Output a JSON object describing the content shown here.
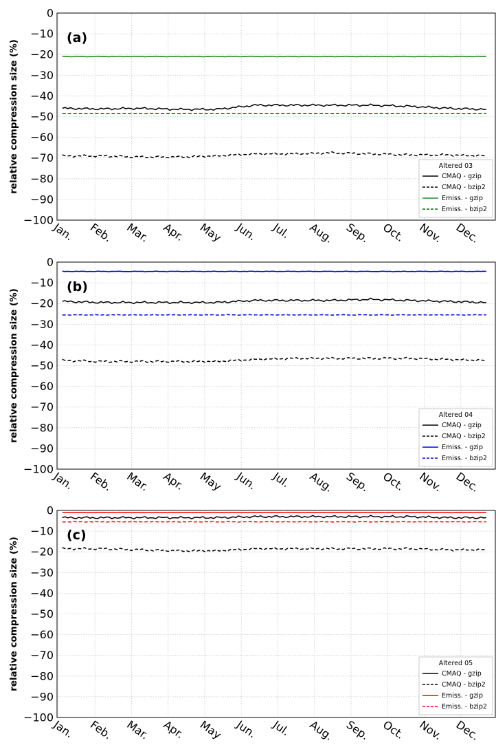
{
  "chart_data": [
    {
      "type": "line",
      "panel_label": "(a)",
      "ylabel": "relative compression size (%)",
      "xlabel": "",
      "ylim": [
        -100,
        0
      ],
      "yticks": [
        "0",
        "−10",
        "−20",
        "−30",
        "−40",
        "−50",
        "−60",
        "−70",
        "−80",
        "−90",
        "−100"
      ],
      "categories": [
        "Jan.",
        "Feb.",
        "Mar.",
        "Apr.",
        "May",
        "Jun.",
        "Jul.",
        "Aug.",
        "Sep.",
        "Oct.",
        "Nov.",
        "Dec."
      ],
      "grid": true,
      "legend": {
        "title": "Altered 03",
        "position": "bottom-right"
      },
      "series": [
        {
          "name": "CMAQ - gzip",
          "color": "#000000",
          "dash": "solid",
          "values": [
            -46.0,
            -46.3,
            -46.0,
            -46.5,
            -46.5,
            -44.5,
            -44.5,
            -44.5,
            -44.5,
            -45.0,
            -46.0,
            -46.5
          ]
        },
        {
          "name": "CMAQ - bzip2",
          "color": "#000000",
          "dash": "dashed",
          "values": [
            -69.0,
            -69.0,
            -69.5,
            -69.5,
            -69.0,
            -68.0,
            -68.0,
            -67.5,
            -68.0,
            -68.5,
            -68.5,
            -69.0
          ]
        },
        {
          "name": "Emiss. - gzip",
          "color": "#228B22",
          "dash": "solid",
          "values": [
            -21.0,
            -21.0,
            -21.0,
            -21.0,
            -21.0,
            -21.0,
            -21.0,
            -21.0,
            -21.0,
            -21.0,
            -21.0,
            -21.0
          ]
        },
        {
          "name": "Emiss. - bzip2",
          "color": "#006400",
          "dash": "dashed",
          "values": [
            -48.5,
            -48.5,
            -48.5,
            -48.5,
            -48.5,
            -48.5,
            -48.5,
            -48.5,
            -48.5,
            -48.5,
            -48.5,
            -48.5
          ]
        }
      ]
    },
    {
      "type": "line",
      "panel_label": "(b)",
      "ylabel": "relative compression size (%)",
      "xlabel": "",
      "ylim": [
        -100,
        0
      ],
      "yticks": [
        "0",
        "−10",
        "−20",
        "−30",
        "−40",
        "−50",
        "−60",
        "−70",
        "−80",
        "−90",
        "−100"
      ],
      "categories": [
        "Jan.",
        "Feb.",
        "Mar.",
        "Apr.",
        "May",
        "Jun.",
        "Jul.",
        "Aug.",
        "Sep.",
        "Oct.",
        "Nov.",
        "Dec."
      ],
      "grid": true,
      "legend": {
        "title": "Altered 04",
        "position": "bottom-right"
      },
      "series": [
        {
          "name": "CMAQ - gzip",
          "color": "#000000",
          "dash": "solid",
          "values": [
            -19.0,
            -19.5,
            -19.5,
            -19.5,
            -19.5,
            -18.5,
            -18.5,
            -18.5,
            -18.0,
            -18.5,
            -19.0,
            -19.5
          ]
        },
        {
          "name": "CMAQ - bzip2",
          "color": "#000000",
          "dash": "dashed",
          "values": [
            -47.5,
            -48.0,
            -48.0,
            -48.0,
            -48.0,
            -47.0,
            -46.5,
            -46.5,
            -46.5,
            -46.5,
            -47.0,
            -47.5
          ]
        },
        {
          "name": "Emiss. - gzip",
          "color": "#0000ff",
          "dash": "solid",
          "values": [
            -4.5,
            -4.5,
            -4.5,
            -4.5,
            -4.5,
            -4.5,
            -4.5,
            -4.5,
            -4.5,
            -4.5,
            -4.5,
            -4.5
          ]
        },
        {
          "name": "Emiss. - bzip2",
          "color": "#0000ff",
          "dash": "dashed",
          "values": [
            -25.5,
            -25.5,
            -25.5,
            -25.5,
            -25.5,
            -25.5,
            -25.5,
            -25.5,
            -25.5,
            -25.5,
            -25.5,
            -25.5
          ]
        }
      ]
    },
    {
      "type": "line",
      "panel_label": "(c)",
      "ylabel": "relative compression size (%)",
      "xlabel": "",
      "ylim": [
        -100,
        0
      ],
      "yticks": [
        "0",
        "−10",
        "−20",
        "−30",
        "−40",
        "−50",
        "−60",
        "−70",
        "−80",
        "−90",
        "−100"
      ],
      "categories": [
        "Jan.",
        "Feb.",
        "Mar.",
        "Apr.",
        "May",
        "Jun.",
        "Jul.",
        "Aug.",
        "Sep.",
        "Oct.",
        "Nov.",
        "Dec."
      ],
      "grid": true,
      "legend": {
        "title": "Altered 05",
        "position": "bottom-right"
      },
      "series": [
        {
          "name": "CMAQ - gzip",
          "color": "#000000",
          "dash": "solid",
          "values": [
            -3.5,
            -3.5,
            -3.5,
            -3.5,
            -3.5,
            -3.0,
            -3.0,
            -3.0,
            -3.0,
            -3.0,
            -3.5,
            -3.5
          ]
        },
        {
          "name": "CMAQ - bzip2",
          "color": "#000000",
          "dash": "dashed",
          "values": [
            -18.5,
            -18.5,
            -19.0,
            -19.5,
            -19.5,
            -18.5,
            -18.5,
            -18.5,
            -18.5,
            -18.5,
            -19.0,
            -19.0
          ]
        },
        {
          "name": "Emiss. - gzip",
          "color": "#ff0000",
          "dash": "solid",
          "values": [
            -1.0,
            -1.0,
            -1.0,
            -1.0,
            -1.0,
            -1.0,
            -1.0,
            -1.0,
            -1.0,
            -1.0,
            -1.0,
            -1.0
          ]
        },
        {
          "name": "Emiss. - bzip2",
          "color": "#ff0000",
          "dash": "dashed",
          "values": [
            -5.5,
            -5.5,
            -5.5,
            -5.5,
            -5.5,
            -5.5,
            -5.5,
            -5.5,
            -5.5,
            -5.5,
            -5.5,
            -5.5
          ]
        }
      ]
    }
  ]
}
